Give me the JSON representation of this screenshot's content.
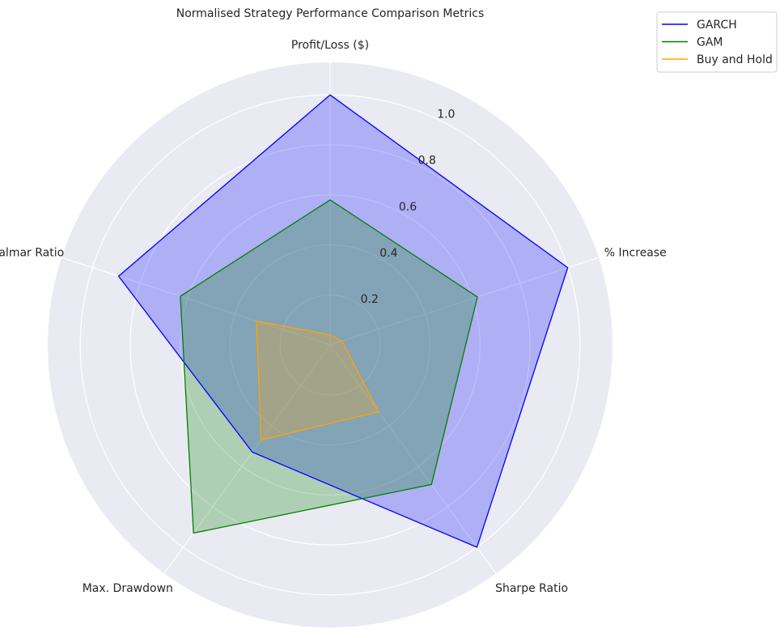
{
  "chart_data": {
    "type": "radar",
    "title": "Normalised Strategy Performance Comparison Metrics",
    "axes": [
      "Profit/Loss ($)",
      "% Increase",
      "Sharpe Ratio",
      "Max. Drawdown",
      "Calmar Ratio"
    ],
    "r_ticks": [
      "0.2",
      "0.4",
      "0.6",
      "0.8",
      "1.0"
    ],
    "r_range": [
      0,
      1.13
    ],
    "grid": true,
    "legend_position": "top-right",
    "series": [
      {
        "name": "GARCH",
        "values": [
          1.0,
          1.0,
          1.0,
          0.53,
          0.89
        ],
        "color": "#0000ff",
        "fill": "#0000ff"
      },
      {
        "name": "GAM",
        "values": [
          0.58,
          0.62,
          0.69,
          0.93,
          0.63
        ],
        "color": "#008000",
        "fill": "#008000"
      },
      {
        "name": "Buy and Hold",
        "values": [
          0.04,
          0.05,
          0.33,
          0.47,
          0.31
        ],
        "color": "#ffa500",
        "fill": "#ffa500"
      }
    ],
    "background_color": "#eaeaf2",
    "grid_color": "#ffffff"
  }
}
